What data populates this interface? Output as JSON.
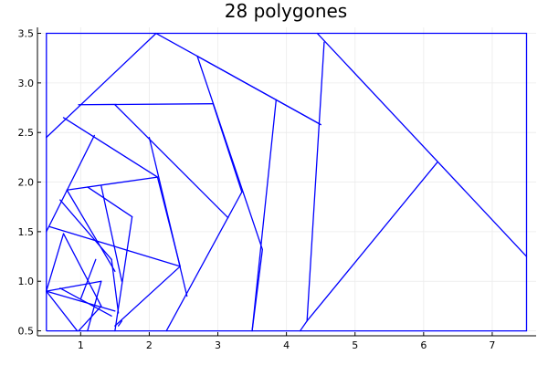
{
  "chart_data": {
    "type": "line",
    "title": "28 polygones",
    "xlabel": "",
    "ylabel": "",
    "xlim": [
      0.37,
      7.64
    ],
    "ylim": [
      0.45,
      3.56
    ],
    "xticks": [
      1,
      2,
      3,
      4,
      5,
      6,
      7
    ],
    "xtick_labels": [
      "1",
      "2",
      "3",
      "4",
      "5",
      "6",
      "7"
    ],
    "yticks": [
      0.5,
      1.0,
      1.5,
      2.0,
      2.5,
      3.0,
      3.5
    ],
    "ytick_labels": [
      "0.5",
      "1.0",
      "1.5",
      "2.0",
      "2.5",
      "3.0",
      "3.5"
    ],
    "grid": true,
    "legend": "none",
    "line_color": "#0000ff",
    "frame": [
      [
        0.5,
        0.5
      ],
      [
        7.5,
        0.5
      ],
      [
        7.5,
        3.5
      ],
      [
        0.5,
        3.5
      ],
      [
        0.5,
        0.5
      ]
    ],
    "segments": [
      [
        [
          0.5,
          2.45
        ],
        [
          2.1,
          3.5
        ]
      ],
      [
        [
          2.1,
          3.5
        ],
        [
          4.5,
          2.58
        ]
      ],
      [
        [
          4.5,
          2.58
        ],
        [
          2.7,
          3.27
        ]
      ],
      [
        [
          2.7,
          3.27
        ],
        [
          3.65,
          1.32
        ]
      ],
      [
        [
          3.65,
          1.32
        ],
        [
          3.5,
          0.5
        ]
      ],
      [
        [
          4.45,
          3.5
        ],
        [
          7.5,
          1.25
        ]
      ],
      [
        [
          4.55,
          3.41
        ],
        [
          4.3,
          0.6
        ]
      ],
      [
        [
          4.3,
          0.6
        ],
        [
          4.2,
          0.5
        ]
      ],
      [
        [
          4.3,
          0.6
        ],
        [
          6.2,
          2.2
        ]
      ],
      [
        [
          3.85,
          2.83
        ],
        [
          3.5,
          0.5
        ]
      ],
      [
        [
          0.97,
          2.78
        ],
        [
          2.93,
          2.79
        ]
      ],
      [
        [
          2.93,
          2.79
        ],
        [
          3.35,
          1.9
        ]
      ],
      [
        [
          3.35,
          1.9
        ],
        [
          2.25,
          0.5
        ]
      ],
      [
        [
          0.75,
          2.65
        ],
        [
          2.12,
          2.05
        ]
      ],
      [
        [
          1.5,
          2.78
        ],
        [
          3.15,
          1.64
        ]
      ],
      [
        [
          2.0,
          2.45
        ],
        [
          2.55,
          0.85
        ]
      ],
      [
        [
          2.12,
          2.05
        ],
        [
          0.8,
          1.92
        ]
      ],
      [
        [
          1.2,
          2.47
        ],
        [
          0.5,
          1.5
        ]
      ],
      [
        [
          0.55,
          1.55
        ],
        [
          2.45,
          1.15
        ]
      ],
      [
        [
          2.45,
          1.15
        ],
        [
          2.12,
          2.05
        ]
      ],
      [
        [
          0.8,
          1.92
        ],
        [
          1.5,
          1.1
        ]
      ],
      [
        [
          1.3,
          1.96
        ],
        [
          1.6,
          1.0
        ]
      ],
      [
        [
          1.1,
          1.95
        ],
        [
          1.75,
          1.65
        ]
      ],
      [
        [
          1.75,
          1.65
        ],
        [
          1.5,
          0.5
        ]
      ],
      [
        [
          0.7,
          1.82
        ],
        [
          1.45,
          1.22
        ]
      ],
      [
        [
          1.45,
          1.22
        ],
        [
          1.55,
          0.68
        ]
      ],
      [
        [
          0.75,
          1.48
        ],
        [
          0.5,
          0.9
        ]
      ],
      [
        [
          0.75,
          1.48
        ],
        [
          1.3,
          0.75
        ]
      ],
      [
        [
          0.5,
          0.9
        ],
        [
          1.3,
          1.0
        ]
      ],
      [
        [
          1.3,
          1.0
        ],
        [
          1.1,
          0.5
        ]
      ],
      [
        [
          0.5,
          0.9
        ],
        [
          1.5,
          0.7
        ]
      ],
      [
        [
          0.5,
          0.9
        ],
        [
          0.95,
          0.5
        ]
      ],
      [
        [
          1.22,
          1.22
        ],
        [
          1.0,
          0.82
        ]
      ],
      [
        [
          0.7,
          0.93
        ],
        [
          1.45,
          0.65
        ]
      ],
      [
        [
          0.97,
          0.5
        ],
        [
          1.3,
          0.75
        ]
      ],
      [
        [
          1.5,
          0.55
        ],
        [
          2.45,
          1.15
        ]
      ],
      [
        [
          1.55,
          0.55
        ],
        [
          1.6,
          0.6
        ]
      ]
    ]
  }
}
